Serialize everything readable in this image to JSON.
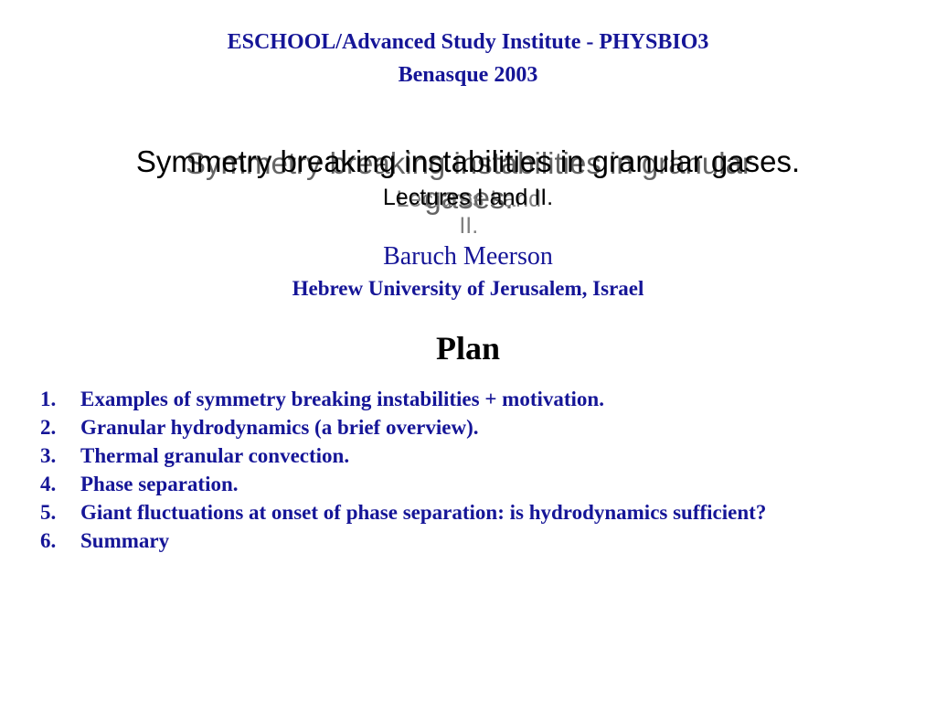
{
  "header": {
    "line1": "ESCHOOL/Advanced Study Institute - PHYSBIO3",
    "line2": "Benasque 2003"
  },
  "title": {
    "main": "Symmetry breaking instabilities in granular gases.",
    "sub": "Lectures I and II."
  },
  "author": {
    "name": "Baruch Meerson",
    "affiliation": "Hebrew University of Jerusalem, Israel"
  },
  "plan": {
    "heading": "Plan",
    "items": [
      "Examples of symmetry breaking instabilities + motivation.",
      "Granular hydrodynamics (a brief overview).",
      "Thermal granular convection.",
      "Phase separation.",
      "Giant fluctuations at onset of phase separation: is hydrodynamics sufficient?",
      "Summary"
    ]
  },
  "colors": {
    "blue": "#151597",
    "black": "#000000",
    "bg": "#ffffff",
    "shadow": "#707070"
  }
}
